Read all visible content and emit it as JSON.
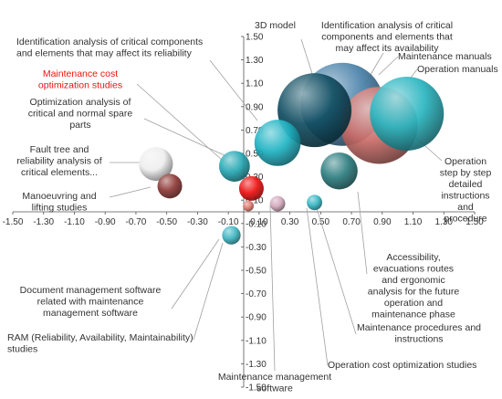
{
  "chart_data": {
    "type": "bubble",
    "xlim": [
      -1.5,
      1.5
    ],
    "ylim": [
      -1.5,
      1.5
    ],
    "x_ticks": [
      "-1.50",
      "-1.30",
      "-1.10",
      "-0.90",
      "-0.70",
      "-0.50",
      "-0.30",
      "-0.10",
      "0.10",
      "0.30",
      "0.50",
      "0.70",
      "0.90",
      "1.10",
      "1.30",
      "1.50"
    ],
    "y_ticks": [
      "1.50",
      "1.30",
      "1.10",
      "0.90",
      "0.70",
      "0.50",
      "0.30",
      "0.10",
      "-0.10",
      "-0.30",
      "-0.50",
      "-0.70",
      "-0.90",
      "-1.10",
      "-1.30",
      "-1.50"
    ],
    "grid": false,
    "points": [
      {
        "label": "Operation manuals",
        "x": 1.06,
        "y": 0.84,
        "size": 0.24,
        "color": "#2ab5c0"
      },
      {
        "label": "Maintenance manuals",
        "x": 0.88,
        "y": 0.74,
        "size": 0.25,
        "color": "#cc6e6a"
      },
      {
        "label": "Identification analysis of critical components and elements that may affect its availability",
        "x": 0.64,
        "y": 0.92,
        "size": 0.27,
        "color": "#4a82aa"
      },
      {
        "label": "3D model",
        "x": 0.46,
        "y": 0.87,
        "size": 0.24,
        "color": "#124f63"
      },
      {
        "label": "Identification analysis of critical components and elements that may affect its reliability",
        "x": 0.22,
        "y": 0.59,
        "size": 0.15,
        "color": "#1fb3c3"
      },
      {
        "label": "Operation step by step detailed instructions and procedure",
        "x": 0.62,
        "y": 0.35,
        "size": 0.12,
        "color": "#2d7d80"
      },
      {
        "label": "Optimization analysis of critical and normal spare parts",
        "x": -0.06,
        "y": 0.39,
        "size": 0.1,
        "color": "#27a8b4"
      },
      {
        "label": "Fault tree and reliability analysis of critical elements...",
        "x": -0.57,
        "y": 0.41,
        "size": 0.11,
        "color": "#eeeeee"
      },
      {
        "label": "Manoeuvring and lifting studies",
        "x": -0.48,
        "y": 0.22,
        "size": 0.08,
        "color": "#8e3936"
      },
      {
        "label": "Maintenance cost optimization studies",
        "x": 0.05,
        "y": 0.2,
        "size": 0.08,
        "color": "#ee1111"
      },
      {
        "label": "",
        "x": 0.03,
        "y": 0.05,
        "size": 0.035,
        "color": "#e07a70"
      },
      {
        "label": "Maintenance management software",
        "x": 0.22,
        "y": 0.07,
        "size": 0.05,
        "color": "#d2a8bc"
      },
      {
        "label": "Maintenance procedures and instructions",
        "x": 0.46,
        "y": 0.08,
        "size": 0.05,
        "color": "#36b8c4"
      },
      {
        "label": "Document management software related with maintenance management software",
        "x": -0.08,
        "y": -0.2,
        "size": 0.06,
        "color": "#3eb6c2"
      }
    ],
    "annotations": [
      {
        "key": "three_d_model",
        "lines": [
          "3D model"
        ]
      },
      {
        "key": "ident_availability",
        "lines": [
          "Identification analysis of critical",
          "components and elements that",
          "may affect its availability"
        ]
      },
      {
        "key": "ident_reliability",
        "lines": [
          "Identification analysis of critical components",
          "and elements that may affect its reliability"
        ]
      },
      {
        "key": "maint_manuals",
        "lines": [
          "Maintenance manuals"
        ]
      },
      {
        "key": "op_manuals",
        "lines": [
          "Operation manuals"
        ]
      },
      {
        "key": "maint_cost",
        "lines": [
          "Maintenance cost",
          "optimization studies"
        ],
        "highlight": true
      },
      {
        "key": "spare_parts",
        "lines": [
          "Optimization analysis of",
          "critical and normal spare",
          "parts"
        ]
      },
      {
        "key": "fault_tree",
        "lines": [
          "Fault tree and",
          "reliability analysis of",
          "critical elements..."
        ]
      },
      {
        "key": "manoeuvring",
        "lines": [
          "Manoeuvring and",
          "lifting studies"
        ]
      },
      {
        "key": "op_steps",
        "lines": [
          "Operation",
          "step by step",
          "detailed",
          "instructions",
          "and",
          "procedure"
        ]
      },
      {
        "key": "accessibility",
        "lines": [
          "Accessibility,",
          "evacuations routes",
          "and ergonomic",
          "analysis for the future",
          "operation and",
          "maintenance phase"
        ]
      },
      {
        "key": "doc_mgmt",
        "lines": [
          "Document management software",
          "related with maintenance",
          "management software"
        ]
      },
      {
        "key": "maint_proc",
        "lines": [
          "Maintenance procedures and",
          "instructions"
        ]
      },
      {
        "key": "ram",
        "lines": [
          "RAM (Reliability, Availability, Maintainability)",
          "studies"
        ]
      },
      {
        "key": "op_cost",
        "lines": [
          "Operation cost optimization studies"
        ]
      },
      {
        "key": "maint_mgmt",
        "lines": [
          "Maintenance management",
          "software"
        ]
      }
    ]
  }
}
